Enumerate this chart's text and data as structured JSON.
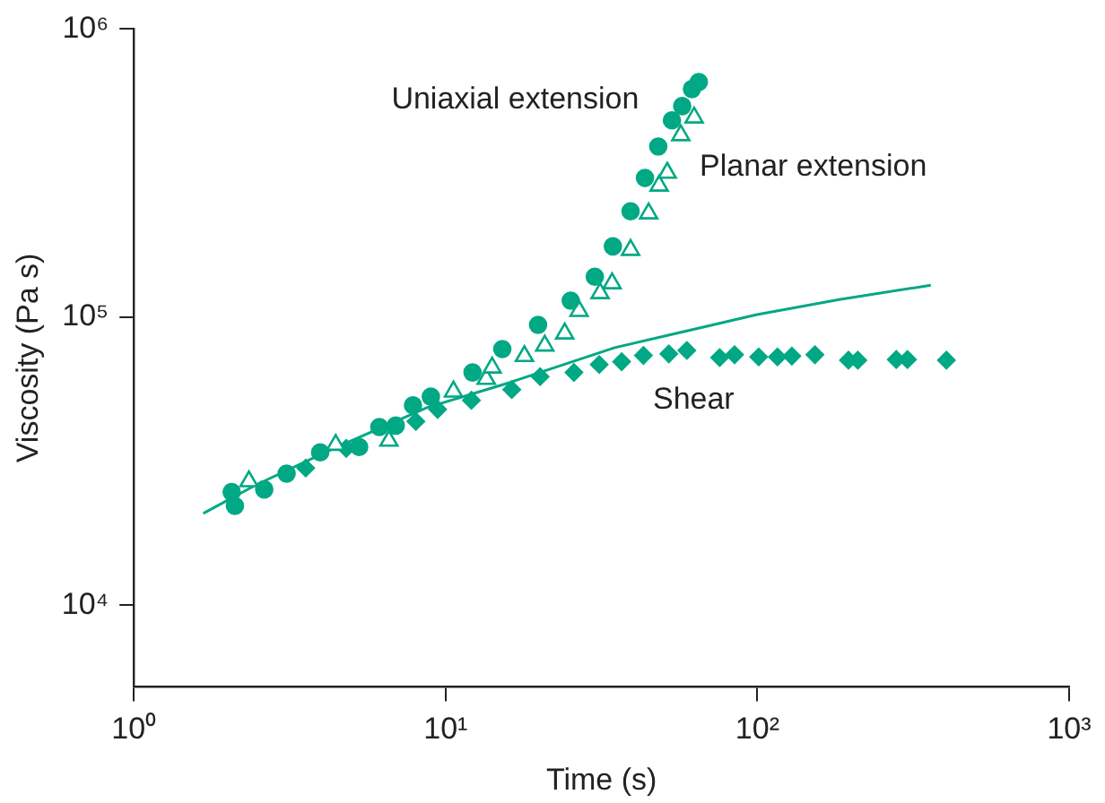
{
  "chart_data": {
    "type": "scatter",
    "xlabel": "Time (s)",
    "ylabel": "Viscosity (Pa s)",
    "log": "xy",
    "xlim": [
      1,
      1000
    ],
    "ylim": [
      5200,
      1000000
    ],
    "xticks": [
      {
        "value": 1,
        "label": "10⁰"
      },
      {
        "value": 10,
        "label": "10¹"
      },
      {
        "value": 100,
        "label": "10²"
      },
      {
        "value": 1000,
        "label": "10³"
      }
    ],
    "yticks": [
      {
        "value": 10000,
        "label": "10⁴"
      },
      {
        "value": 100000,
        "label": "10⁵"
      },
      {
        "value": 1000000,
        "label": "10⁶"
      }
    ],
    "grid": false,
    "legend": false,
    "series": [
      {
        "name": "Uniaxial extension",
        "color": "#00a884",
        "marker": "circle",
        "x": [
          2.06,
          2.11,
          2.62,
          3.09,
          3.96,
          5.28,
          6.13,
          6.92,
          7.86,
          8.97,
          12.2,
          15.2,
          19.8,
          25.2,
          30.1,
          34.4,
          39.2,
          43.6,
          48.1,
          53.2,
          57.4,
          61.7,
          64.9
        ],
        "values": [
          24700,
          22100,
          25200,
          28600,
          33900,
          35400,
          41500,
          42000,
          49400,
          52900,
          64200,
          77400,
          93900,
          114000,
          138000,
          176000,
          233000,
          304000,
          391000,
          482000,
          540000,
          619000,
          655000
        ]
      },
      {
        "name": "Planar extension",
        "color": "#00a884",
        "marker": "triangle",
        "x": [
          2.34,
          4.44,
          6.58,
          10.6,
          13.5,
          14.1,
          17.9,
          20.8,
          24.1,
          26.8,
          31.3,
          34.2,
          39.2,
          44.8,
          48.4,
          51.4,
          56.8,
          62.7
        ],
        "values": [
          26900,
          36000,
          37200,
          55100,
          61000,
          66800,
          73200,
          79600,
          87700,
          105000,
          121000,
          131000,
          171000,
          229000,
          286000,
          317000,
          428000,
          493000
        ]
      },
      {
        "name": "Shear",
        "color": "#00a884",
        "marker": "diamond",
        "x": [
          3.56,
          4.8,
          8.03,
          9.43,
          12.1,
          16.3,
          20.1,
          25.8,
          31.1,
          36.7,
          43.1,
          52.0,
          59.4,
          75.7,
          84.5,
          101,
          116,
          129,
          153,
          196,
          210,
          279,
          303,
          404
        ],
        "values": [
          29900,
          35000,
          43400,
          47800,
          51400,
          56000,
          62100,
          64200,
          68400,
          70000,
          73600,
          74500,
          76600,
          72300,
          74000,
          72700,
          72700,
          73200,
          74000,
          70800,
          70800,
          71200,
          71200,
          70800
        ]
      },
      {
        "type": "line",
        "color": "#00a884",
        "marker": "none",
        "x": [
          1.67,
          2.46,
          4.28,
          8.77,
          16.1,
          34.9,
          99.8,
          183,
          360
        ],
        "values": [
          20800,
          26100,
          34600,
          48600,
          59300,
          78300,
          102000,
          115000,
          129000
        ]
      }
    ]
  }
}
